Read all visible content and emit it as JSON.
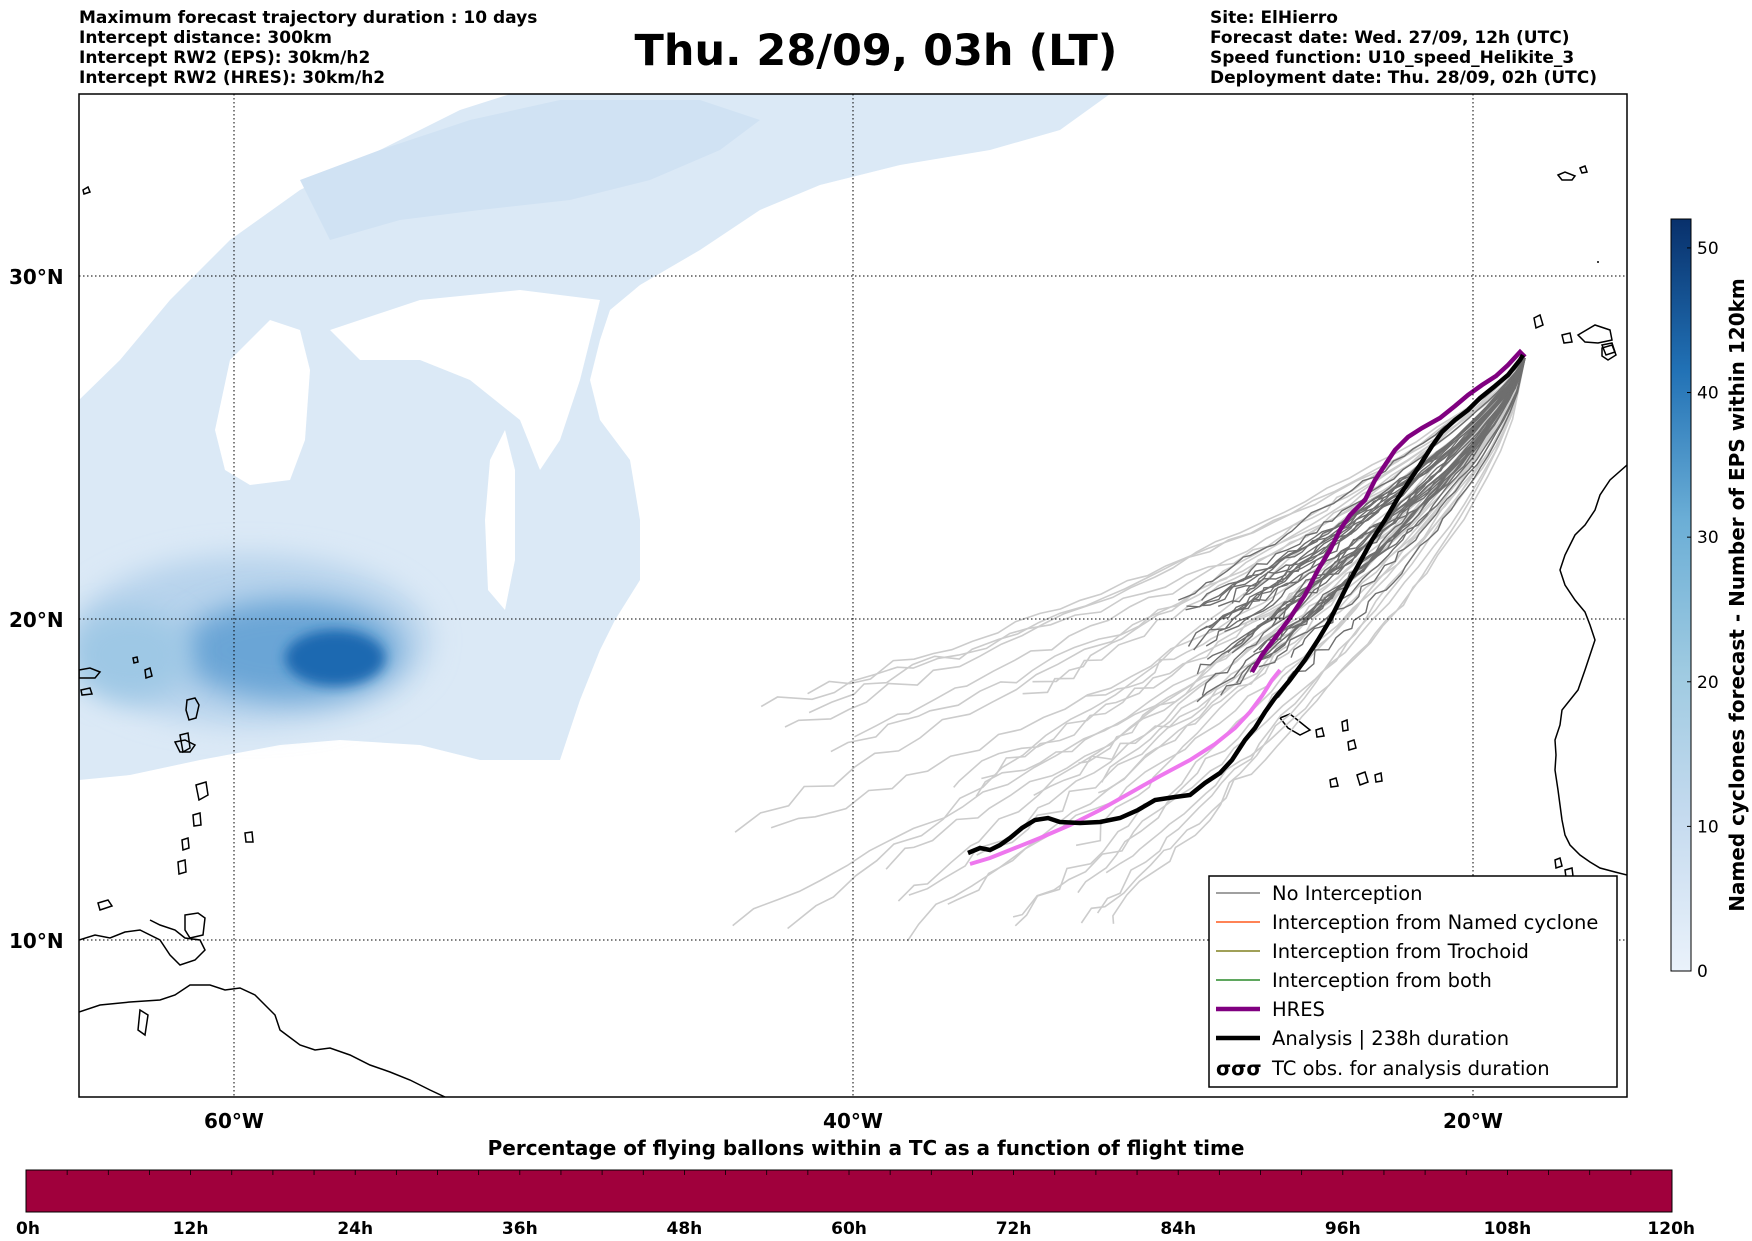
{
  "header": {
    "left_lines": [
      "Maximum forecast trajectory duration : 10 days",
      "Intercept distance: 300km",
      "Intercept RW2 (EPS):  30km/h2",
      "Intercept RW2 (HRES): 30km/h2"
    ],
    "title": "Thu. 28/09, 03h (LT)",
    "right_lines": [
      "Site: ElHierro",
      "Forecast date: Wed. 27/09, 12h (UTC)",
      "Speed function: U10_speed_Helikite_3",
      "Deployment date: Thu. 28/09, 02h (UTC)"
    ]
  },
  "map": {
    "lat_labels": [
      "30°N",
      "20°N",
      "10°N"
    ],
    "lon_labels": [
      "60°W",
      "40°W",
      "20°W"
    ],
    "lon_range": [
      -65,
      -15
    ],
    "lat_range": [
      5.5,
      35
    ],
    "gridlines": true
  },
  "legend": {
    "items": [
      {
        "label": "No Interception",
        "color": "#808080",
        "style": "thin"
      },
      {
        "label": "Interception from Named cyclone",
        "color": "#ff5a1e",
        "style": "thin"
      },
      {
        "label": "Interception from Trochoid",
        "color": "#808020",
        "style": "thin"
      },
      {
        "label": "Interception from both",
        "color": "#2a8a2a",
        "style": "thin"
      },
      {
        "label": "HRES",
        "color": "#800080",
        "style": "thick"
      },
      {
        "label": "Analysis | 238h duration",
        "color": "#000000",
        "style": "thick"
      },
      {
        "label": "TC obs. for analysis duration",
        "color": "#000000",
        "style": "symbol",
        "symbol": "σσσ"
      }
    ]
  },
  "colorbar": {
    "label": "Named cyclones forecast - Number of EPS within 120km",
    "ticks": [
      "0",
      "10",
      "20",
      "30",
      "40",
      "50"
    ],
    "min": 0,
    "max": 52,
    "colors": [
      "#eaf2fb",
      "#c6dbef",
      "#9ecae1",
      "#6baed6",
      "#3182bd",
      "#08306b"
    ]
  },
  "bottom_bar": {
    "title": "Percentage of flying ballons within a TC as a function of flight time",
    "ticks": [
      "0h",
      "12h",
      "24h",
      "36h",
      "48h",
      "60h",
      "72h",
      "84h",
      "96h",
      "108h",
      "120h"
    ],
    "color": "#a0003c"
  },
  "tracks": {
    "hres_color": "#800080",
    "hres_extension_color": "#ee77ee",
    "analysis_color": "#000000",
    "eps_color": "#6e6e6e",
    "eps_light_color": "#cccccc"
  }
}
